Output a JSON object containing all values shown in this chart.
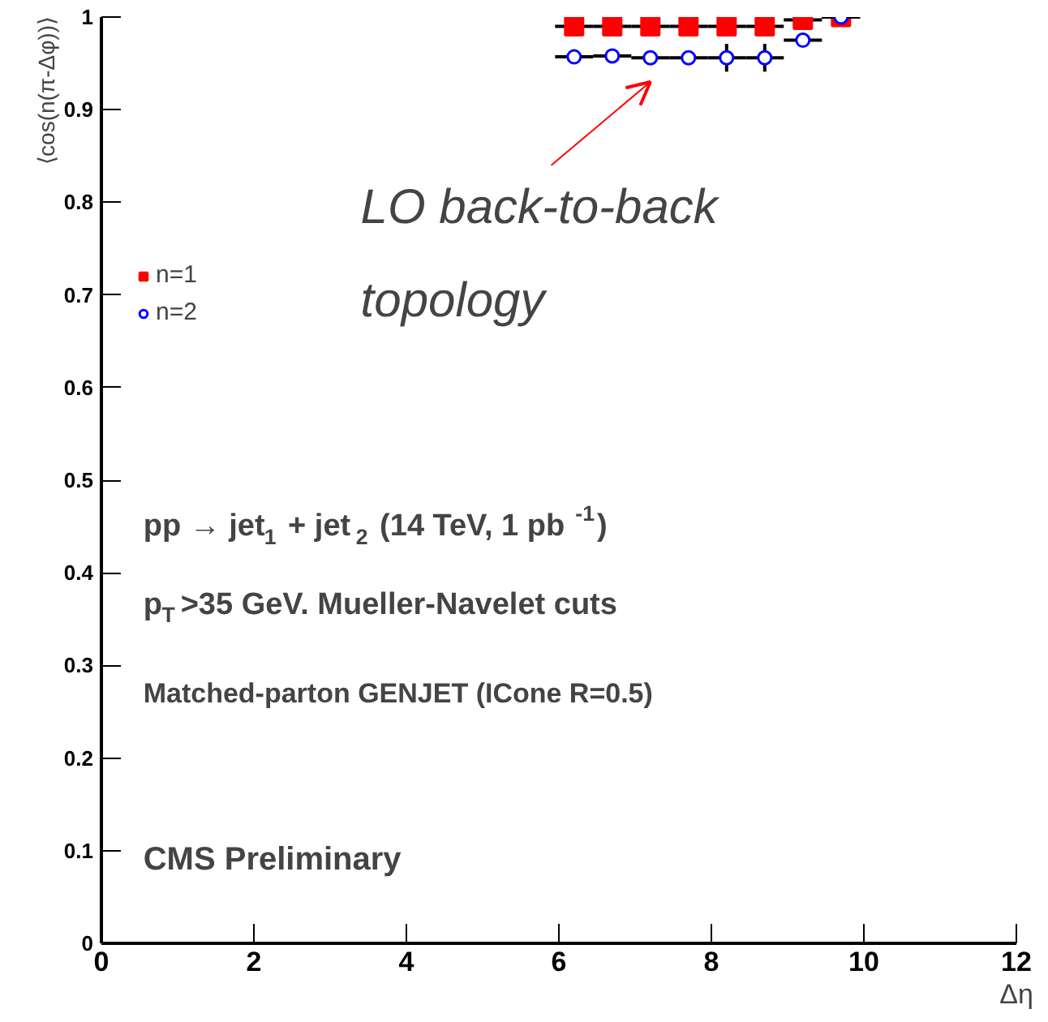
{
  "chart_data": {
    "type": "scatter",
    "xlabel": "Δη",
    "ylabel": "⟨cos(n(π-Δφ))⟩",
    "xlim": [
      0,
      12
    ],
    "ylim": [
      0,
      1
    ],
    "xticks": [
      0,
      2,
      4,
      6,
      8,
      10,
      12
    ],
    "yticks": [
      0,
      0.1,
      0.2,
      0.3,
      0.4,
      0.5,
      0.6,
      0.7,
      0.8,
      0.9,
      1
    ],
    "x": [
      6.2,
      6.7,
      7.2,
      7.7,
      8.2,
      8.7,
      9.2,
      9.7
    ],
    "series": [
      {
        "name": "n=1",
        "color": "#ff0000",
        "marker": "square",
        "values": [
          0.99,
          0.99,
          0.99,
          0.99,
          0.99,
          0.99,
          0.997,
          1.0
        ],
        "xerrors": [
          0.25,
          0.25,
          0.25,
          0.25,
          0.25,
          0.25,
          0.25,
          0.25
        ]
      },
      {
        "name": "n=2",
        "color": "#0000ff",
        "marker": "circle",
        "values": [
          0.957,
          0.958,
          0.956,
          0.956,
          0.956,
          0.956,
          0.975,
          1.0
        ],
        "xerrors": [
          0.25,
          0.25,
          0.25,
          0.25,
          0.25,
          0.25,
          0.25,
          0.25
        ],
        "errors": [
          null,
          null,
          null,
          null,
          0.015,
          0.015,
          null,
          null
        ]
      }
    ],
    "legend": "top left",
    "grid": false,
    "annotations": [
      "LO back-to-back\ntopology",
      "pp → jet$_{1}$ + jet$_{2}$ (14 TeV, 1 pb$^{-1}$)",
      "p$_{T}$>35 GeV. Mueller-Navelet cuts",
      "Matched-parton GENJET (ICone R=0.5)",
      "CMS Preliminary"
    ]
  }
}
